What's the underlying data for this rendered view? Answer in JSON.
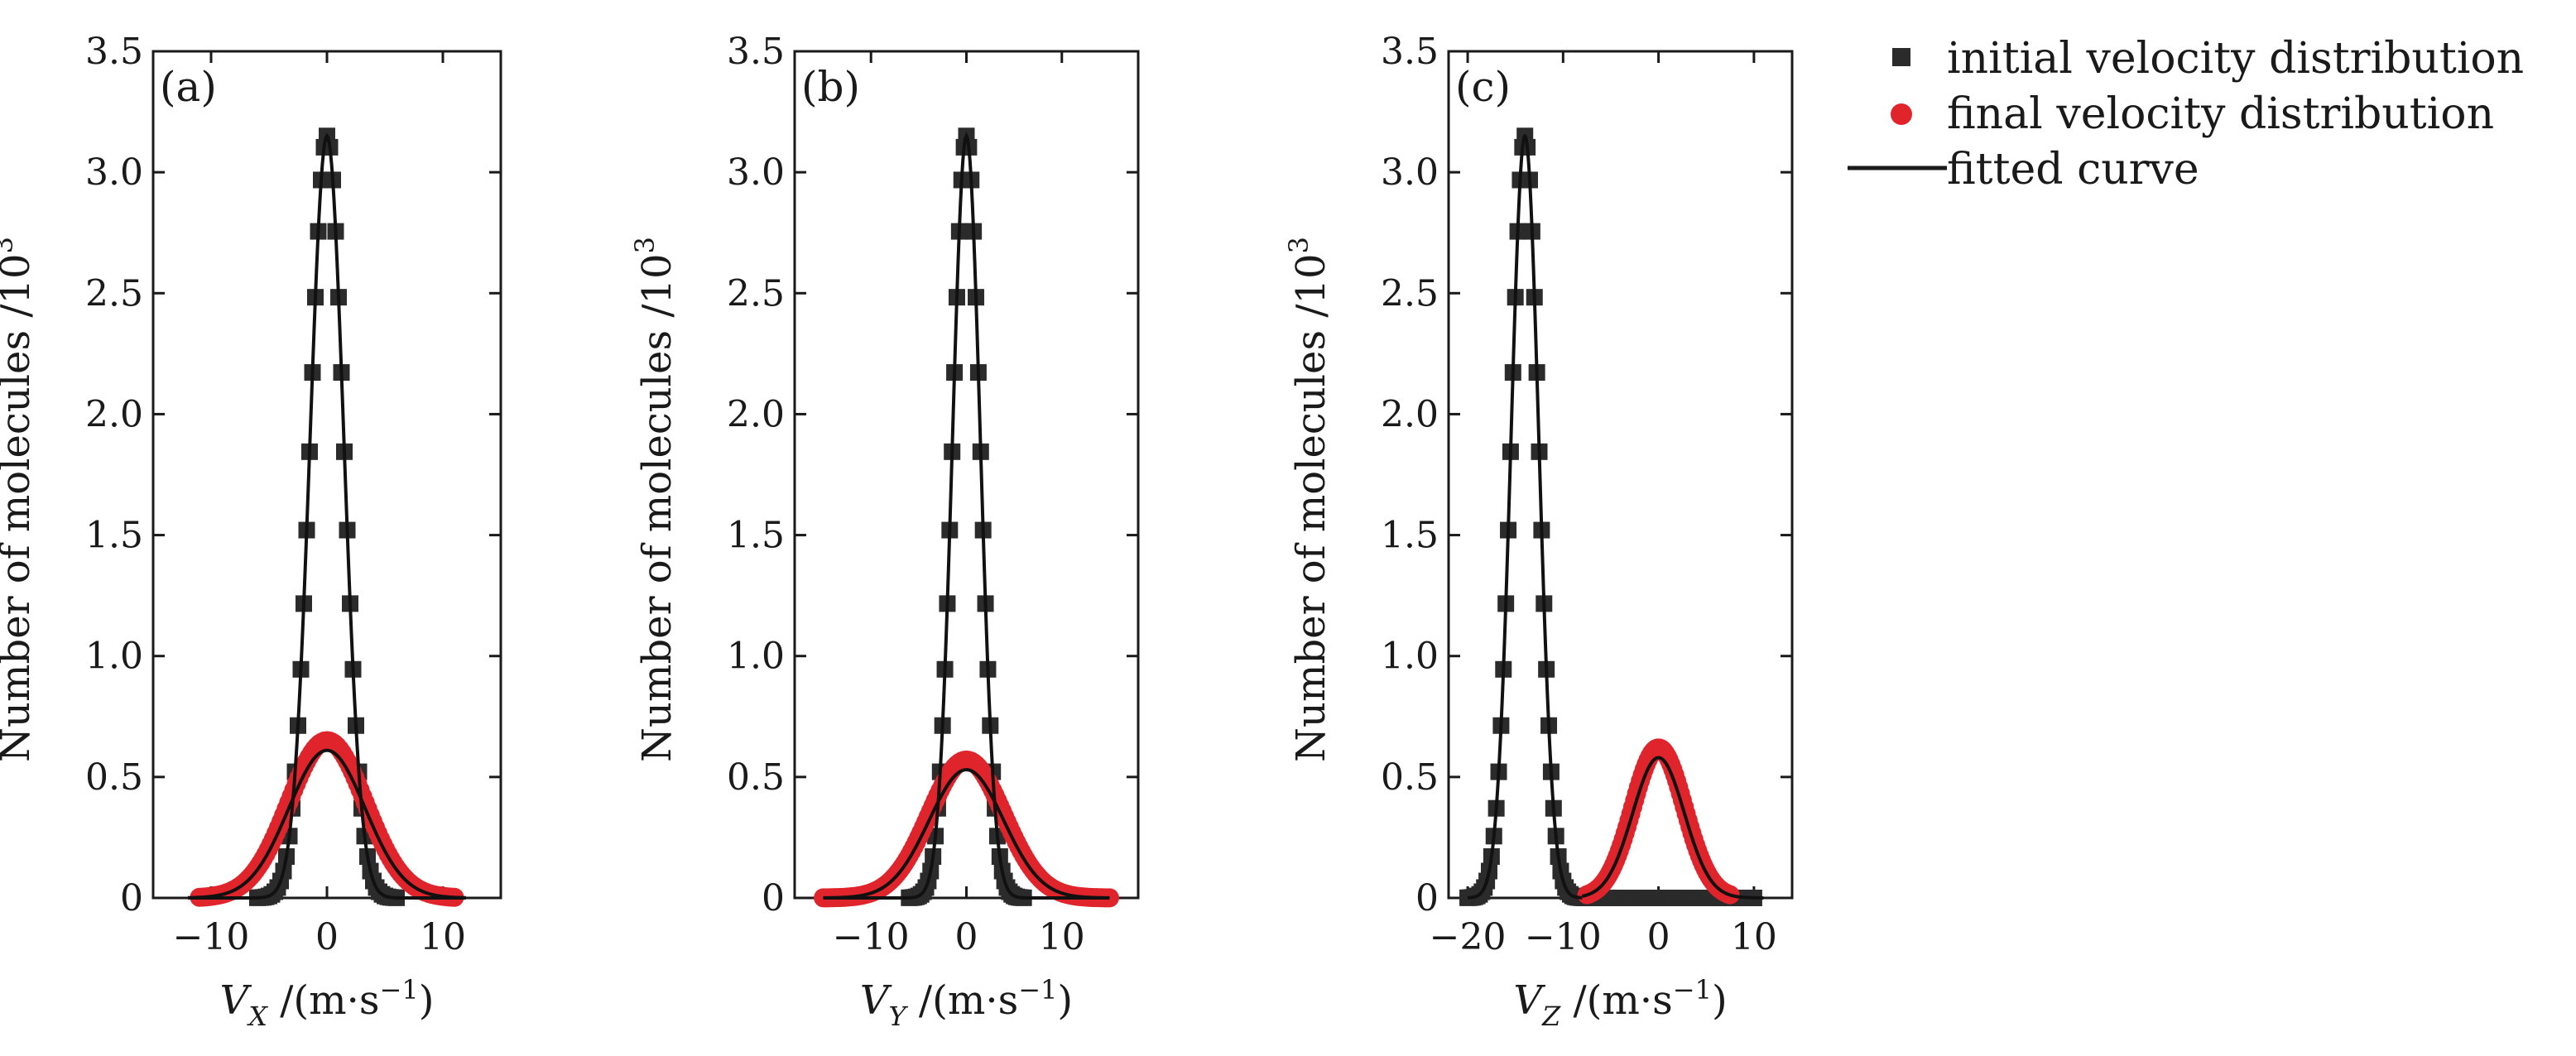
{
  "chart_data": [
    {
      "type": "scatter",
      "panel_label": "(a)",
      "xlabel": {
        "var": "V",
        "sub": "X",
        "unit": " /(m·s",
        "sup": "−1",
        "close": ")"
      },
      "ylabel": {
        "text": "Number of molecules /10",
        "sup": "3"
      },
      "xlim": [
        -15,
        15
      ],
      "ylim": [
        0,
        3.5
      ],
      "xticks": [
        -10,
        0,
        10
      ],
      "xtick_labels": [
        "−10",
        "0",
        "10"
      ],
      "yticks": [
        0,
        0.5,
        1.0,
        1.5,
        2.0,
        2.5,
        3.0,
        3.5
      ],
      "ytick_labels": [
        "0",
        "0.5",
        "1.0",
        "1.5",
        "2.0",
        "2.5",
        "3.0",
        "3.5"
      ],
      "series": [
        {
          "name": "initial velocity distribution",
          "marker": "square",
          "color": "#2b2b2b",
          "center": 0,
          "amplitude": 3.15,
          "sigma": 1.45,
          "x_start": -6,
          "x_end": 6,
          "step": 0.25
        },
        {
          "name": "final velocity distribution",
          "marker": "circle",
          "color": "#e0242c",
          "center": 0,
          "amplitude": 0.65,
          "sigma": 3.3,
          "x_start": -11,
          "x_end": 11,
          "step": 0.22
        }
      ],
      "fits": [
        {
          "center": 0,
          "amplitude": 3.15,
          "sigma": 1.45,
          "x_start": -12,
          "x_end": 12
        },
        {
          "center": 0,
          "amplitude": 0.61,
          "sigma": 3.3,
          "x_start": -12,
          "x_end": 12
        }
      ]
    },
    {
      "type": "scatter",
      "panel_label": "(b)",
      "xlabel": {
        "var": "V",
        "sub": "Y",
        "unit": " /(m·s",
        "sup": "−1",
        "close": ")"
      },
      "ylabel": {
        "text": "Number of molecules /10",
        "sup": "3"
      },
      "xlim": [
        -18,
        18
      ],
      "ylim": [
        0,
        3.5
      ],
      "xticks": [
        -10,
        0,
        10
      ],
      "xtick_labels": [
        "−10",
        "0",
        "10"
      ],
      "yticks": [
        0,
        0.5,
        1.0,
        1.5,
        2.0,
        2.5,
        3.0,
        3.5
      ],
      "ytick_labels": [
        "0",
        "0.5",
        "1.0",
        "1.5",
        "2.0",
        "2.5",
        "3.0",
        "3.5"
      ],
      "series": [
        {
          "name": "initial velocity distribution",
          "marker": "square",
          "color": "#2b2b2b",
          "center": 0,
          "amplitude": 3.15,
          "sigma": 1.45,
          "x_start": -6,
          "x_end": 6,
          "step": 0.25
        },
        {
          "name": "final velocity distribution",
          "marker": "circle",
          "color": "#e0242c",
          "center": 0,
          "amplitude": 0.57,
          "sigma": 3.9,
          "x_start": -15,
          "x_end": 15,
          "step": 0.25
        }
      ],
      "fits": [
        {
          "center": 0,
          "amplitude": 3.15,
          "sigma": 1.45,
          "x_start": -15,
          "x_end": 15
        },
        {
          "center": 0,
          "amplitude": 0.53,
          "sigma": 3.9,
          "x_start": -15,
          "x_end": 15
        }
      ]
    },
    {
      "type": "scatter",
      "panel_label": "(c)",
      "xlabel": {
        "var": "V",
        "sub": "Z",
        "unit": " /(m·s",
        "sup": "−1",
        "close": ")"
      },
      "ylabel": {
        "text": "Number of molecules /10",
        "sup": "3"
      },
      "xlim": [
        -22,
        14
      ],
      "ylim": [
        0,
        3.5
      ],
      "xticks": [
        -20,
        -10,
        0,
        10
      ],
      "xtick_labels": [
        "−20",
        "−10",
        "0",
        "10"
      ],
      "yticks": [
        0,
        0.5,
        1.0,
        1.5,
        2.0,
        2.5,
        3.0,
        3.5
      ],
      "ytick_labels": [
        "0",
        "0.5",
        "1.0",
        "1.5",
        "2.0",
        "2.5",
        "3.0",
        "3.5"
      ],
      "series": [
        {
          "name": "initial velocity distribution",
          "marker": "square",
          "color": "#2b2b2b",
          "center": -14,
          "amplitude": 3.15,
          "sigma": 1.45,
          "x_start": -20,
          "x_end": 10,
          "step": 0.25
        },
        {
          "name": "final velocity distribution",
          "marker": "circle",
          "color": "#e0242c",
          "center": 0,
          "amplitude": 0.62,
          "sigma": 2.7,
          "x_start": -7.5,
          "x_end": 7.5,
          "step": 0.2
        }
      ],
      "fits": [
        {
          "center": -14,
          "amplitude": 3.15,
          "sigma": 1.45,
          "x_start": -20,
          "x_end": -8
        },
        {
          "center": 0,
          "amplitude": 0.58,
          "sigma": 2.7,
          "x_start": -8,
          "x_end": 11
        }
      ]
    }
  ],
  "legend": {
    "placement": "right",
    "items": [
      {
        "label": "initial velocity distribution",
        "marker": "square",
        "color": "#2b2b2b"
      },
      {
        "label": "final velocity distribution",
        "marker": "circle",
        "color": "#e0242c"
      },
      {
        "label": "fitted curve",
        "marker": "line",
        "color": "#1a1a1a"
      }
    ]
  }
}
